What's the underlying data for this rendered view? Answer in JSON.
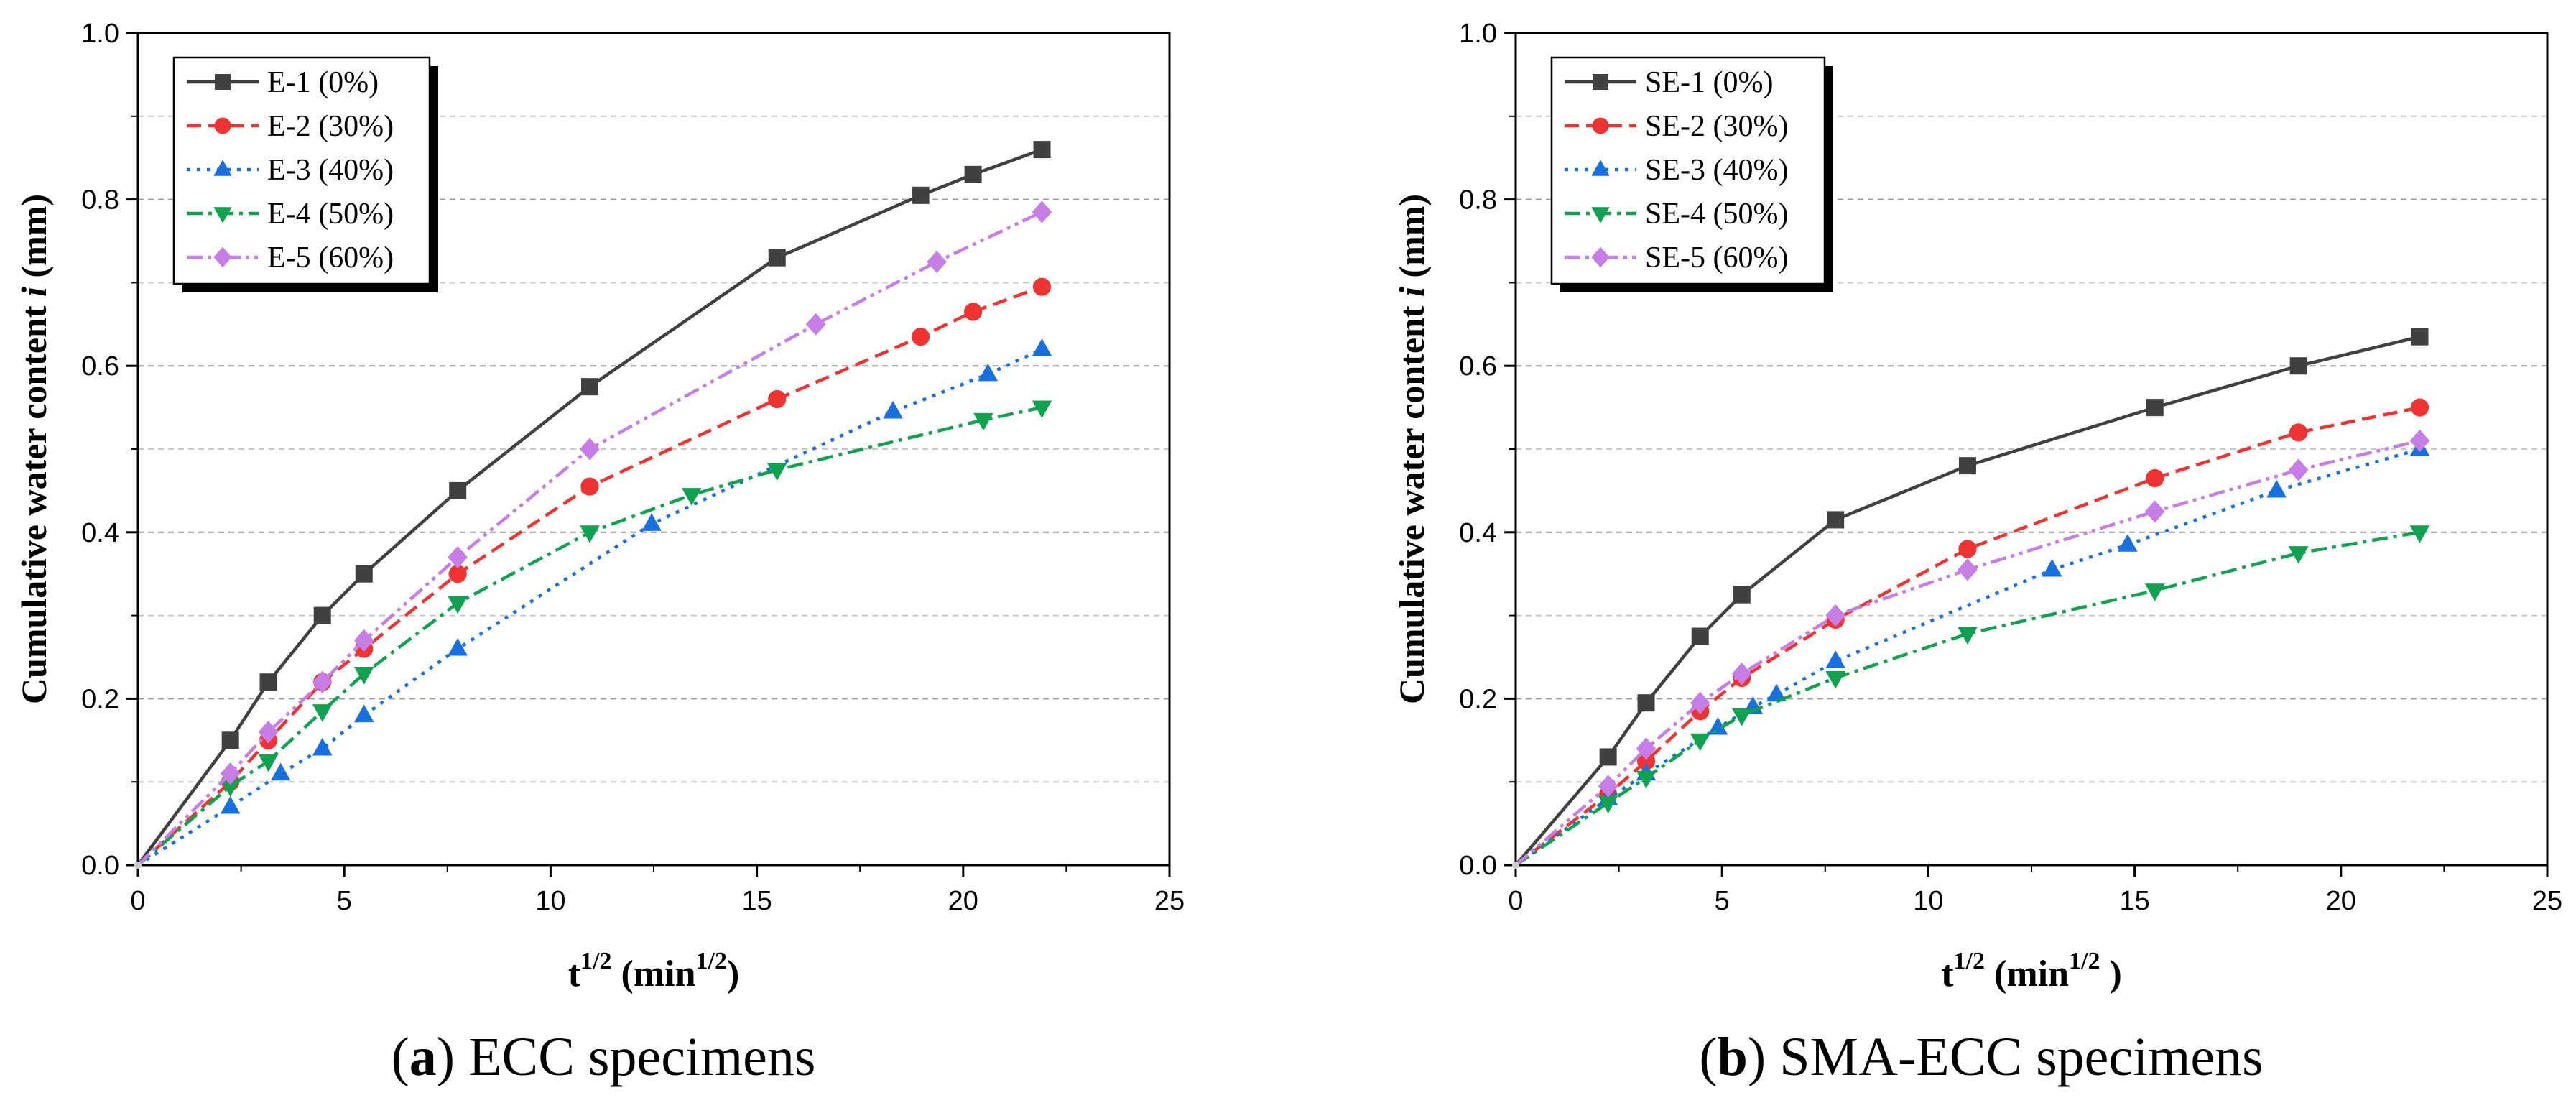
{
  "chart_data": [
    {
      "id": "a",
      "type": "line",
      "caption": {
        "letter": "a",
        "text": "ECC specimens"
      },
      "xlabel": {
        "base": "t",
        "sup": "1/2",
        "unit_open": " (min",
        "unit_sup": "1/2",
        "unit_close": ")"
      },
      "ylabel": {
        "text": "Cumulative water content ",
        "italic": "i",
        "unit": " (mm)"
      },
      "xlim": [
        0,
        25
      ],
      "ylim": [
        0,
        1.0
      ],
      "xticks": [
        0,
        5,
        10,
        15,
        20,
        25
      ],
      "xtick_labels": [
        "0",
        "5",
        "10",
        "15",
        "20",
        "25"
      ],
      "yticks": [
        0,
        0.2,
        0.4,
        0.6,
        0.8,
        1.0
      ],
      "ytick_labels": [
        "0.0",
        "0.2",
        "0.4",
        "0.6",
        "0.8",
        "1.0"
      ],
      "grid": "horizontal dashed at 0.1 intervals",
      "legend_position": "top-left",
      "series": [
        {
          "name": "E-1",
          "pct": "(0%)",
          "color": "#404040",
          "marker": "square",
          "dash": "solid",
          "x": [
            0,
            2.24,
            3.16,
            4.47,
            5.48,
            7.75,
            10.95,
            15.49,
            18.97,
            20.24,
            21.91
          ],
          "y": [
            0,
            0.15,
            0.22,
            0.3,
            0.35,
            0.45,
            0.575,
            0.73,
            0.805,
            0.83,
            0.86
          ]
        },
        {
          "name": "E-2",
          "pct": "(30%)",
          "color": "#ee3333",
          "marker": "circle",
          "dash": "dash",
          "x": [
            0,
            2.24,
            3.16,
            4.47,
            5.48,
            7.75,
            10.95,
            15.49,
            18.97,
            20.24,
            21.91
          ],
          "y": [
            0,
            0.1,
            0.15,
            0.22,
            0.26,
            0.35,
            0.455,
            0.56,
            0.635,
            0.665,
            0.695
          ]
        },
        {
          "name": "E-3",
          "pct": "(40%)",
          "color": "#1a6fdf",
          "marker": "triangle-up",
          "dash": "dot",
          "x": [
            0,
            2.24,
            3.46,
            4.47,
            5.48,
            7.75,
            12.45,
            18.3,
            20.6,
            21.91
          ],
          "y": [
            0,
            0.07,
            0.11,
            0.14,
            0.18,
            0.26,
            0.41,
            0.545,
            0.59,
            0.62
          ]
        },
        {
          "name": "E-4",
          "pct": "(50%)",
          "color": "#12a150",
          "marker": "triangle-down",
          "dash": "dashdot",
          "x": [
            0,
            2.24,
            3.16,
            4.47,
            5.48,
            7.75,
            10.95,
            13.42,
            15.49,
            20.49,
            21.91
          ],
          "y": [
            0,
            0.095,
            0.125,
            0.185,
            0.23,
            0.315,
            0.4,
            0.445,
            0.475,
            0.535,
            0.55
          ]
        },
        {
          "name": "E-5",
          "pct": "(60%)",
          "color": "#c77de6",
          "marker": "diamond",
          "dash": "dashdotdot",
          "x": [
            0,
            2.24,
            3.16,
            4.47,
            5.48,
            7.75,
            10.95,
            16.43,
            19.36,
            21.91
          ],
          "y": [
            0,
            0.11,
            0.16,
            0.22,
            0.27,
            0.37,
            0.5,
            0.65,
            0.725,
            0.785
          ]
        }
      ]
    },
    {
      "id": "b",
      "type": "line",
      "caption": {
        "letter": "b",
        "text": "SMA-ECC specimens"
      },
      "xlabel": {
        "base": "t",
        "sup": "1/2",
        "unit_open": " (min",
        "unit_sup": "1/2",
        "unit_close": " )"
      },
      "ylabel": {
        "text": "Cumulative water content ",
        "italic": "i",
        "unit": " (mm)"
      },
      "xlim": [
        0,
        25
      ],
      "ylim": [
        0,
        1.0
      ],
      "xticks": [
        0,
        5,
        10,
        15,
        20,
        25
      ],
      "xtick_labels": [
        "0",
        "5",
        "10",
        "15",
        "20",
        "25"
      ],
      "yticks": [
        0,
        0.2,
        0.4,
        0.6,
        0.8,
        1.0
      ],
      "ytick_labels": [
        "0.0",
        "0.2",
        "0.4",
        "0.6",
        "0.8",
        "1.0"
      ],
      "grid": "horizontal dashed at 0.1 intervals",
      "legend_position": "top-left",
      "series": [
        {
          "name": "SE-1",
          "pct": "(0%)",
          "color": "#404040",
          "marker": "square",
          "dash": "solid",
          "x": [
            0,
            2.24,
            3.16,
            4.47,
            5.48,
            7.75,
            10.95,
            15.49,
            18.97,
            21.91
          ],
          "y": [
            0,
            0.13,
            0.195,
            0.275,
            0.325,
            0.415,
            0.48,
            0.55,
            0.6,
            0.635
          ]
        },
        {
          "name": "SE-2",
          "pct": "(30%)",
          "color": "#ee3333",
          "marker": "circle",
          "dash": "dash",
          "x": [
            0,
            2.24,
            3.16,
            4.47,
            5.48,
            7.75,
            10.95,
            15.49,
            18.97,
            21.91
          ],
          "y": [
            0,
            0.085,
            0.125,
            0.185,
            0.225,
            0.295,
            0.38,
            0.465,
            0.52,
            0.55
          ]
        },
        {
          "name": "SE-3",
          "pct": "(40%)",
          "color": "#1a6fdf",
          "marker": "triangle-up",
          "dash": "dot",
          "x": [
            0,
            2.24,
            3.16,
            4.9,
            5.75,
            6.32,
            7.75,
            13.0,
            14.83,
            18.44,
            21.91
          ],
          "y": [
            0,
            0.08,
            0.11,
            0.165,
            0.19,
            0.205,
            0.245,
            0.355,
            0.385,
            0.45,
            0.5
          ]
        },
        {
          "name": "SE-4",
          "pct": "(50%)",
          "color": "#12a150",
          "marker": "triangle-down",
          "dash": "dashdot",
          "x": [
            0,
            2.24,
            3.16,
            4.47,
            5.48,
            7.75,
            10.95,
            15.49,
            18.97,
            21.91
          ],
          "y": [
            0,
            0.075,
            0.105,
            0.15,
            0.18,
            0.225,
            0.278,
            0.33,
            0.375,
            0.4
          ]
        },
        {
          "name": "SE-5",
          "pct": "(60%)",
          "color": "#c77de6",
          "marker": "diamond",
          "dash": "dashdotdot",
          "x": [
            0,
            2.24,
            3.16,
            4.47,
            5.48,
            7.75,
            10.95,
            15.49,
            18.97,
            21.91
          ],
          "y": [
            0,
            0.095,
            0.14,
            0.195,
            0.23,
            0.3,
            0.355,
            0.425,
            0.475,
            0.51
          ]
        }
      ]
    }
  ]
}
